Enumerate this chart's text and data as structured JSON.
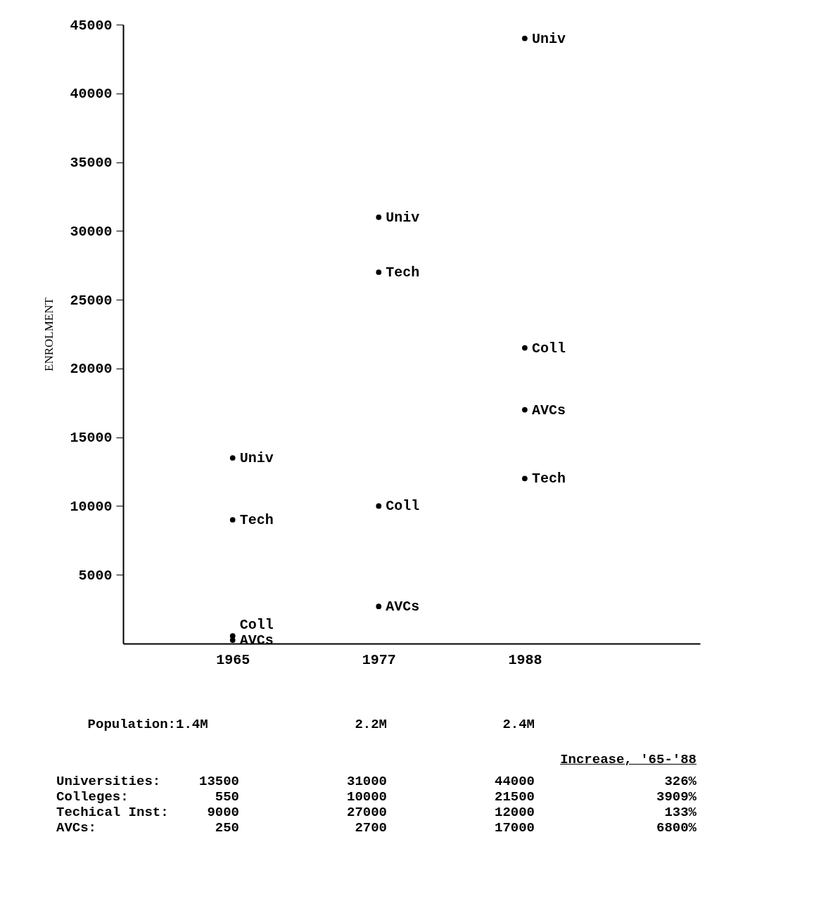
{
  "chart_data": {
    "type": "scatter",
    "ylabel": "ENROLMENT",
    "categories": [
      "1965",
      "1977",
      "1988"
    ],
    "series": [
      {
        "name": "Univ",
        "color": "#000000",
        "values": [
          13500,
          31000,
          44000
        ]
      },
      {
        "name": "Coll",
        "color": "#000000",
        "values": [
          550,
          10000,
          21500
        ]
      },
      {
        "name": "Tech",
        "color": "#000000",
        "values": [
          9000,
          27000,
          12000
        ]
      },
      {
        "name": "AVCs",
        "color": "#000000",
        "values": [
          250,
          2700,
          17000
        ]
      }
    ],
    "marker": "circle",
    "ylim": [
      0,
      45000
    ],
    "yticks": [
      5000,
      10000,
      15000,
      20000,
      25000,
      30000,
      35000,
      40000,
      45000
    ],
    "grid": false,
    "legend": false,
    "data_labels": true,
    "annotations": [
      "Population:",
      "1.4M",
      "2.2M",
      "2.4M",
      "Increase, '65-'88",
      "326%",
      "3909%",
      "133%",
      "6800%",
      "Universities:",
      "Colleges:",
      "Techical Inst:",
      "AVCs:"
    ]
  }
}
